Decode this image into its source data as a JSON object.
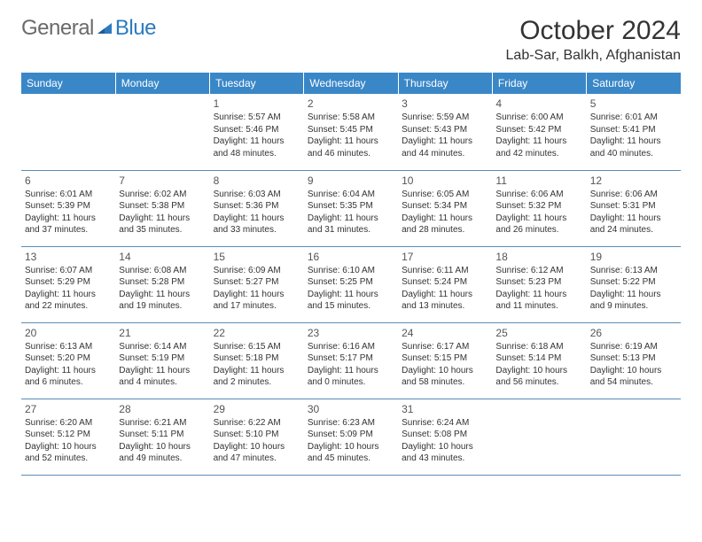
{
  "logo": {
    "general": "General",
    "blue": "Blue"
  },
  "title": "October 2024",
  "location": "Lab-Sar, Balkh, Afghanistan",
  "dayHeaders": [
    "Sunday",
    "Monday",
    "Tuesday",
    "Wednesday",
    "Thursday",
    "Friday",
    "Saturday"
  ],
  "colors": {
    "header_bg": "#3a87c7",
    "header_text": "#ffffff",
    "row_border": "#5a8db8",
    "logo_general": "#6a6a6a",
    "logo_blue": "#2b7bbf",
    "body_text": "#333333"
  },
  "typography": {
    "title_fontsize": 30,
    "location_fontsize": 16,
    "header_fontsize": 12,
    "daynum_fontsize": 12,
    "info_fontsize": 10
  },
  "weeks": [
    [
      null,
      null,
      {
        "n": "1",
        "sr": "5:57 AM",
        "ss": "5:46 PM",
        "dh": "11",
        "dm": "48"
      },
      {
        "n": "2",
        "sr": "5:58 AM",
        "ss": "5:45 PM",
        "dh": "11",
        "dm": "46"
      },
      {
        "n": "3",
        "sr": "5:59 AM",
        "ss": "5:43 PM",
        "dh": "11",
        "dm": "44"
      },
      {
        "n": "4",
        "sr": "6:00 AM",
        "ss": "5:42 PM",
        "dh": "11",
        "dm": "42"
      },
      {
        "n": "5",
        "sr": "6:01 AM",
        "ss": "5:41 PM",
        "dh": "11",
        "dm": "40"
      }
    ],
    [
      {
        "n": "6",
        "sr": "6:01 AM",
        "ss": "5:39 PM",
        "dh": "11",
        "dm": "37"
      },
      {
        "n": "7",
        "sr": "6:02 AM",
        "ss": "5:38 PM",
        "dh": "11",
        "dm": "35"
      },
      {
        "n": "8",
        "sr": "6:03 AM",
        "ss": "5:36 PM",
        "dh": "11",
        "dm": "33"
      },
      {
        "n": "9",
        "sr": "6:04 AM",
        "ss": "5:35 PM",
        "dh": "11",
        "dm": "31"
      },
      {
        "n": "10",
        "sr": "6:05 AM",
        "ss": "5:34 PM",
        "dh": "11",
        "dm": "28"
      },
      {
        "n": "11",
        "sr": "6:06 AM",
        "ss": "5:32 PM",
        "dh": "11",
        "dm": "26"
      },
      {
        "n": "12",
        "sr": "6:06 AM",
        "ss": "5:31 PM",
        "dh": "11",
        "dm": "24"
      }
    ],
    [
      {
        "n": "13",
        "sr": "6:07 AM",
        "ss": "5:29 PM",
        "dh": "11",
        "dm": "22"
      },
      {
        "n": "14",
        "sr": "6:08 AM",
        "ss": "5:28 PM",
        "dh": "11",
        "dm": "19"
      },
      {
        "n": "15",
        "sr": "6:09 AM",
        "ss": "5:27 PM",
        "dh": "11",
        "dm": "17"
      },
      {
        "n": "16",
        "sr": "6:10 AM",
        "ss": "5:25 PM",
        "dh": "11",
        "dm": "15"
      },
      {
        "n": "17",
        "sr": "6:11 AM",
        "ss": "5:24 PM",
        "dh": "11",
        "dm": "13"
      },
      {
        "n": "18",
        "sr": "6:12 AM",
        "ss": "5:23 PM",
        "dh": "11",
        "dm": "11"
      },
      {
        "n": "19",
        "sr": "6:13 AM",
        "ss": "5:22 PM",
        "dh": "11",
        "dm": "9"
      }
    ],
    [
      {
        "n": "20",
        "sr": "6:13 AM",
        "ss": "5:20 PM",
        "dh": "11",
        "dm": "6"
      },
      {
        "n": "21",
        "sr": "6:14 AM",
        "ss": "5:19 PM",
        "dh": "11",
        "dm": "4"
      },
      {
        "n": "22",
        "sr": "6:15 AM",
        "ss": "5:18 PM",
        "dh": "11",
        "dm": "2"
      },
      {
        "n": "23",
        "sr": "6:16 AM",
        "ss": "5:17 PM",
        "dh": "11",
        "dm": "0"
      },
      {
        "n": "24",
        "sr": "6:17 AM",
        "ss": "5:15 PM",
        "dh": "10",
        "dm": "58"
      },
      {
        "n": "25",
        "sr": "6:18 AM",
        "ss": "5:14 PM",
        "dh": "10",
        "dm": "56"
      },
      {
        "n": "26",
        "sr": "6:19 AM",
        "ss": "5:13 PM",
        "dh": "10",
        "dm": "54"
      }
    ],
    [
      {
        "n": "27",
        "sr": "6:20 AM",
        "ss": "5:12 PM",
        "dh": "10",
        "dm": "52"
      },
      {
        "n": "28",
        "sr": "6:21 AM",
        "ss": "5:11 PM",
        "dh": "10",
        "dm": "49"
      },
      {
        "n": "29",
        "sr": "6:22 AM",
        "ss": "5:10 PM",
        "dh": "10",
        "dm": "47"
      },
      {
        "n": "30",
        "sr": "6:23 AM",
        "ss": "5:09 PM",
        "dh": "10",
        "dm": "45"
      },
      {
        "n": "31",
        "sr": "6:24 AM",
        "ss": "5:08 PM",
        "dh": "10",
        "dm": "43"
      },
      null,
      null
    ]
  ],
  "labels": {
    "sunrise": "Sunrise:",
    "sunset": "Sunset:",
    "daylight_prefix": "Daylight:",
    "hours_word": "hours",
    "and_word": "and",
    "minutes_word": "minutes."
  }
}
